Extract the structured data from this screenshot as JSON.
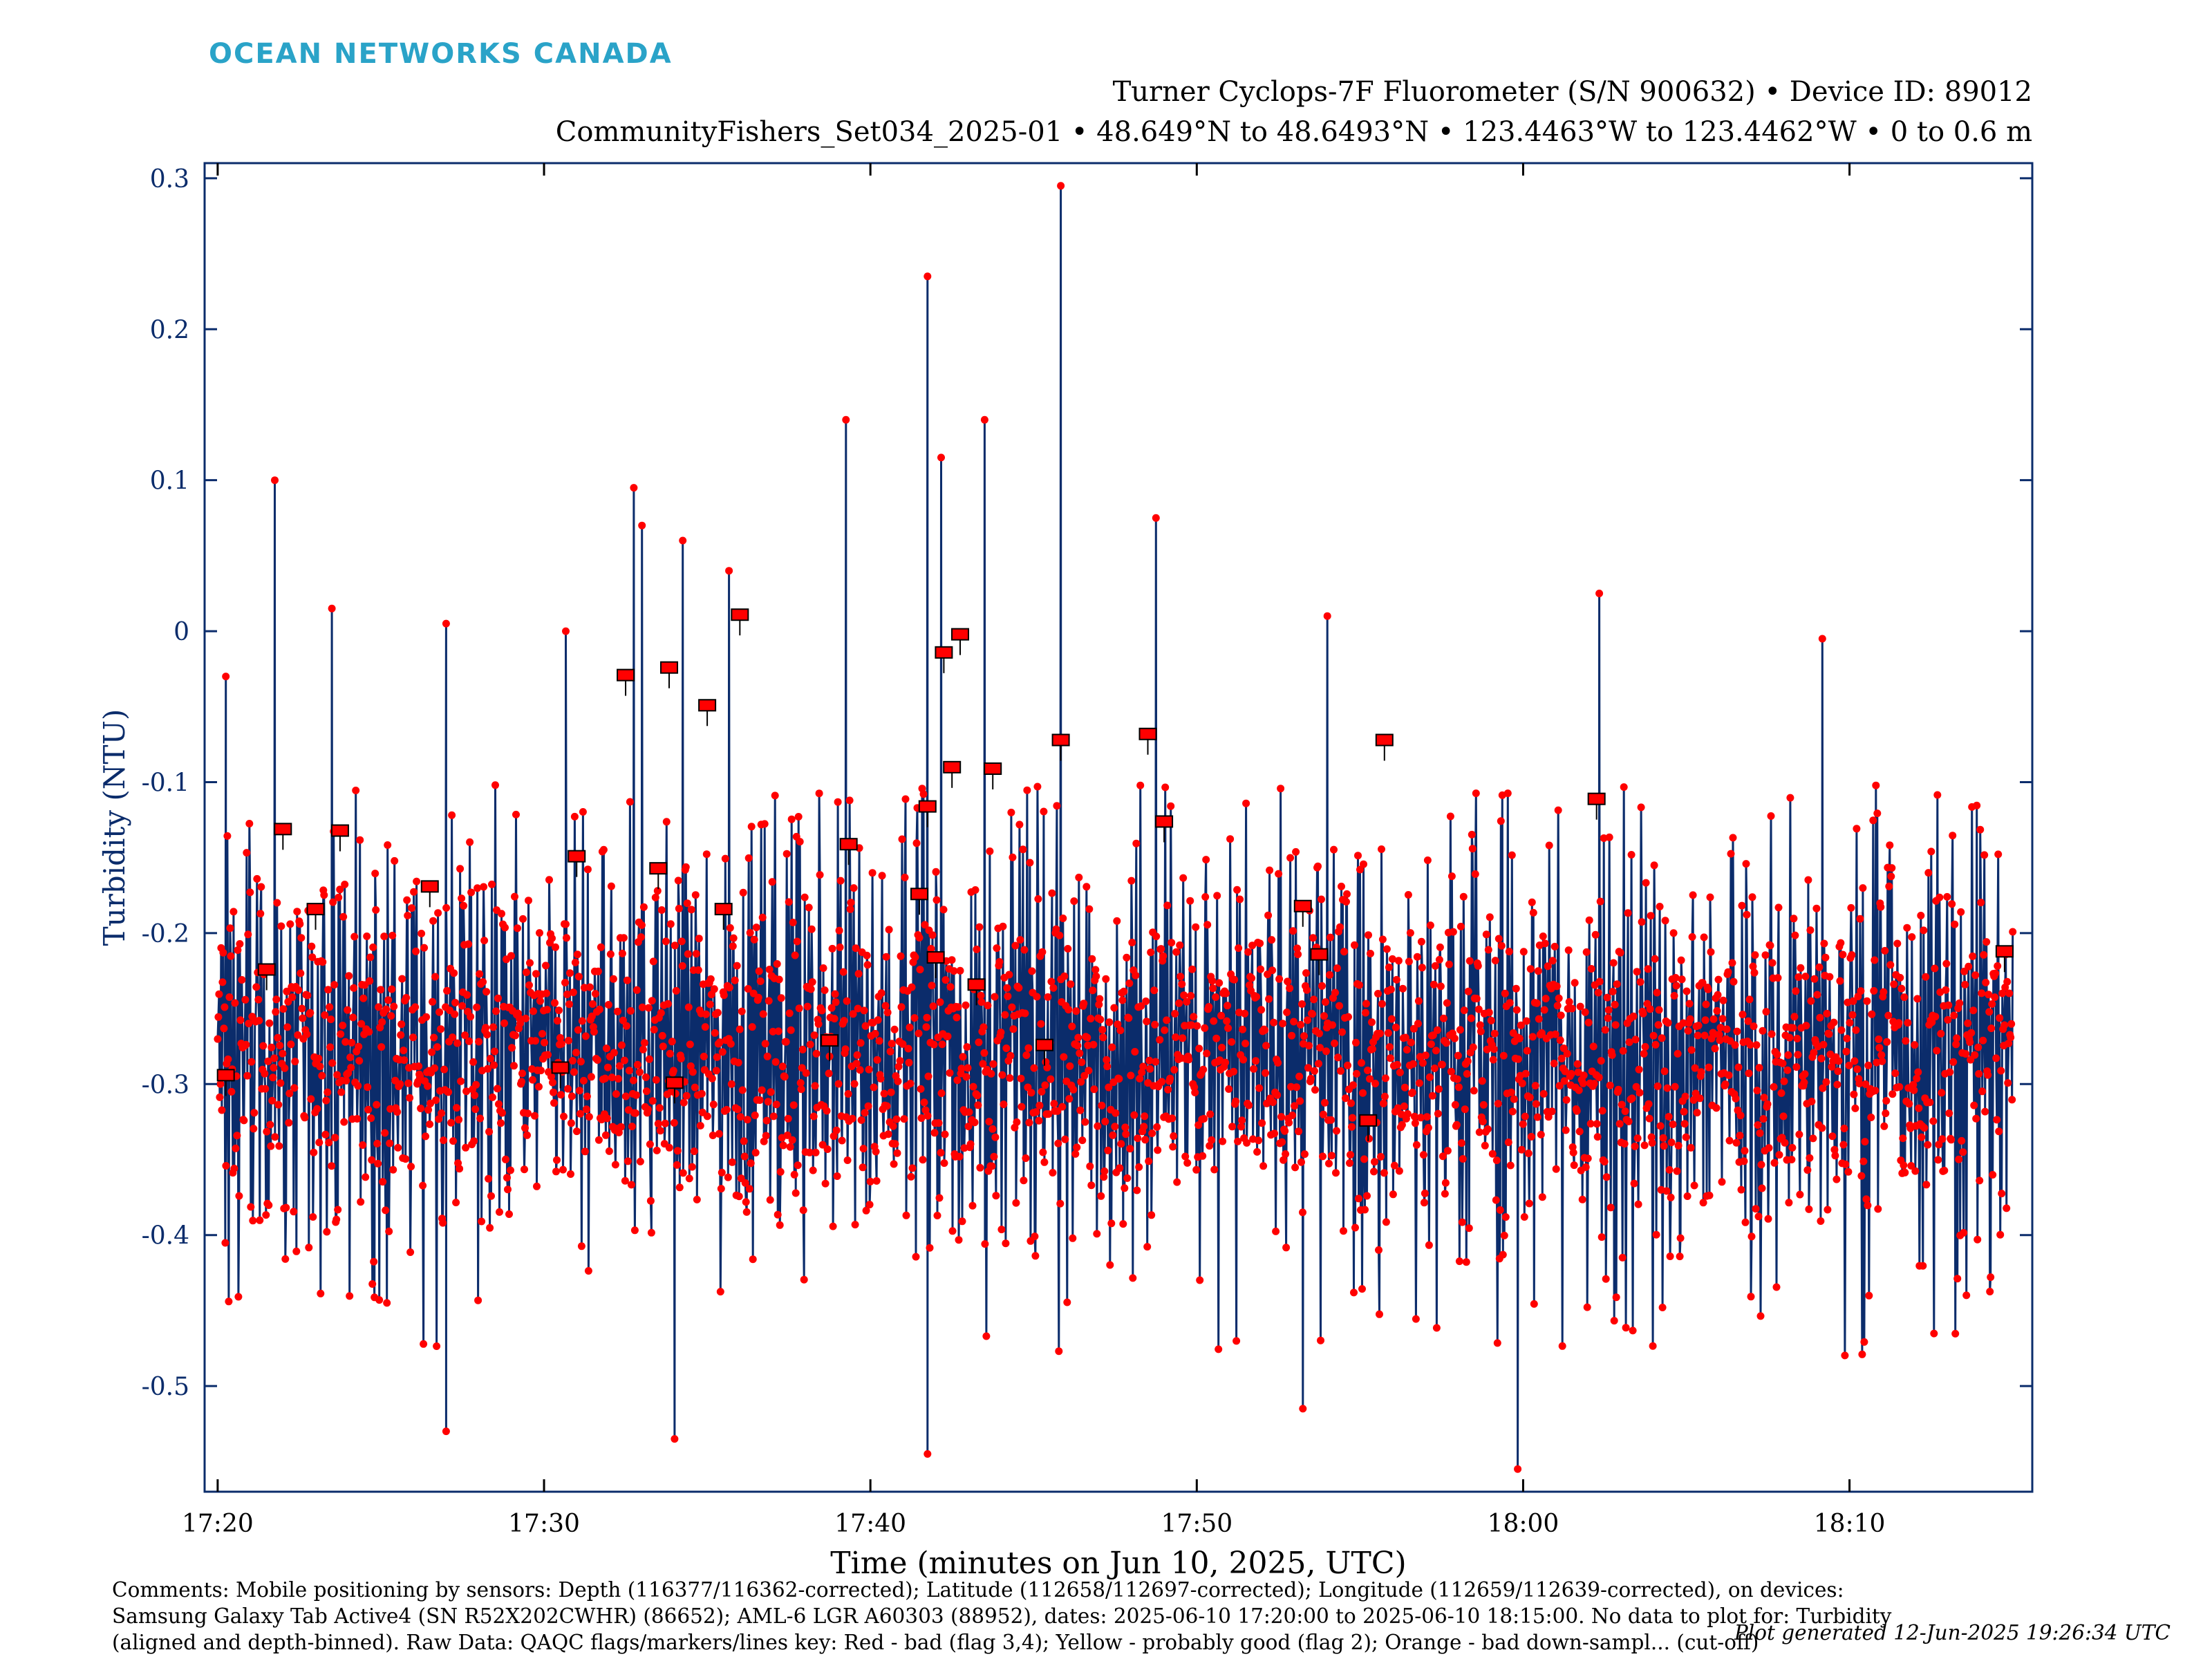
{
  "brand": {
    "logo_text": "OCEAN NETWORKS CANADA",
    "color": "#2aa3c8"
  },
  "header": {
    "line1": "Turner Cyclops-7F Fluorometer (S/N 900632) • Device ID: 89012",
    "line2": "CommunityFishers_Set034_2025-01 • 48.649°N to 48.6493°N • 123.4463°W to 123.4462°W • 0 to 0.6 m"
  },
  "footer": {
    "comments_line1": "Comments: Mobile positioning by sensors: Depth (116377/116362-corrected); Latitude (112658/112697-corrected); Longitude (112659/112639-corrected), on devices:",
    "comments_line2": "Samsung Galaxy Tab Active4 (SN R52X202CWHR) (86652); AML-6 LGR A60303 (88952), dates: 2025-06-10 17:20:00 to 2025-06-10 18:15:00. No data to plot for: Turbidity",
    "comments_line3": "(aligned and depth-binned). Raw Data: QAQC flags/markers/lines key: Red - bad (flag 3,4); Yellow - probably good (flag 2); Orange - bad down-sampl... (cut-off)",
    "generated": "Plot generated 12-Jun-2025 19:26:34 UTC"
  },
  "chart_data": {
    "type": "line",
    "xlabel": "Time (minutes on Jun 10, 2025, UTC)",
    "ylabel": "Turbidity (NTU)",
    "x_unit": "time (HH:MM UTC)",
    "xlim": [
      "17:19:36",
      "18:15:36"
    ],
    "ylim": [
      -0.57,
      0.31
    ],
    "x_ticks": [
      "17:20",
      "17:30",
      "17:40",
      "17:50",
      "18:00",
      "18:10"
    ],
    "y_ticks": [
      0.3,
      0.2,
      0.1,
      0,
      -0.1,
      -0.2,
      -0.3,
      -0.4,
      -0.5
    ],
    "y_tick_labels": [
      "0.3",
      "0.2",
      "0.1",
      "0",
      "-0.1",
      "-0.2",
      "-0.3",
      "-0.4",
      "-0.5"
    ],
    "series_color": "#0b2c6b",
    "flag_color": "#ff0000",
    "grid": false,
    "approx_baseline": {
      "center": -0.28,
      "lower": -0.38,
      "upper": -0.18
    },
    "spikes": [
      {
        "x": "17:20:15",
        "y": -0.03
      },
      {
        "x": "17:21:45",
        "y": 0.1
      },
      {
        "x": "17:23:30",
        "y": 0.015
      },
      {
        "x": "17:27:00",
        "y": 0.005
      },
      {
        "x": "17:30:40",
        "y": 0.0
      },
      {
        "x": "17:32:45",
        "y": 0.095
      },
      {
        "x": "17:33:00",
        "y": 0.07
      },
      {
        "x": "17:34:15",
        "y": 0.06
      },
      {
        "x": "17:35:40",
        "y": 0.04
      },
      {
        "x": "17:39:15",
        "y": 0.14
      },
      {
        "x": "17:41:45",
        "y": 0.235
      },
      {
        "x": "17:42:10",
        "y": 0.115
      },
      {
        "x": "17:43:30",
        "y": 0.14
      },
      {
        "x": "17:45:50",
        "y": 0.295
      },
      {
        "x": "17:48:45",
        "y": 0.075
      },
      {
        "x": "17:54:00",
        "y": 0.01
      },
      {
        "x": "18:02:20",
        "y": 0.025
      },
      {
        "x": "18:09:10",
        "y": -0.005
      }
    ],
    "dips": [
      {
        "x": "17:27:00",
        "y": -0.53
      },
      {
        "x": "17:34:00",
        "y": -0.535
      },
      {
        "x": "17:41:45",
        "y": -0.545
      },
      {
        "x": "17:53:15",
        "y": -0.515
      },
      {
        "x": "17:59:50",
        "y": -0.555
      }
    ],
    "flag_markers": [
      {
        "x": "17:20:15",
        "y": -0.295
      },
      {
        "x": "17:21:30",
        "y": -0.225
      },
      {
        "x": "17:22:00",
        "y": -0.132
      },
      {
        "x": "17:23:00",
        "y": -0.185
      },
      {
        "x": "17:23:45",
        "y": -0.133
      },
      {
        "x": "17:26:30",
        "y": -0.17
      },
      {
        "x": "17:30:30",
        "y": -0.29
      },
      {
        "x": "17:31:00",
        "y": -0.15
      },
      {
        "x": "17:32:30",
        "y": -0.03
      },
      {
        "x": "17:33:30",
        "y": -0.158
      },
      {
        "x": "17:33:50",
        "y": -0.025
      },
      {
        "x": "17:34:00",
        "y": -0.3
      },
      {
        "x": "17:35:00",
        "y": -0.05
      },
      {
        "x": "17:35:30",
        "y": -0.185
      },
      {
        "x": "17:36:00",
        "y": 0.01
      },
      {
        "x": "17:38:45",
        "y": -0.272
      },
      {
        "x": "17:39:20",
        "y": -0.142
      },
      {
        "x": "17:41:30",
        "y": -0.175
      },
      {
        "x": "17:41:45",
        "y": -0.117
      },
      {
        "x": "17:42:00",
        "y": -0.217
      },
      {
        "x": "17:42:15",
        "y": -0.015
      },
      {
        "x": "17:42:30",
        "y": -0.091
      },
      {
        "x": "17:42:45",
        "y": -0.003
      },
      {
        "x": "17:43:15",
        "y": -0.235
      },
      {
        "x": "17:43:45",
        "y": -0.092
      },
      {
        "x": "17:45:20",
        "y": -0.275
      },
      {
        "x": "17:45:50",
        "y": -0.073
      },
      {
        "x": "17:48:30",
        "y": -0.069
      },
      {
        "x": "17:49:00",
        "y": -0.127
      },
      {
        "x": "17:53:15",
        "y": -0.183
      },
      {
        "x": "17:53:45",
        "y": -0.215
      },
      {
        "x": "17:55:15",
        "y": -0.325
      },
      {
        "x": "17:55:45",
        "y": -0.073
      },
      {
        "x": "18:02:15",
        "y": -0.112
      },
      {
        "x": "18:14:45",
        "y": -0.213
      }
    ]
  }
}
